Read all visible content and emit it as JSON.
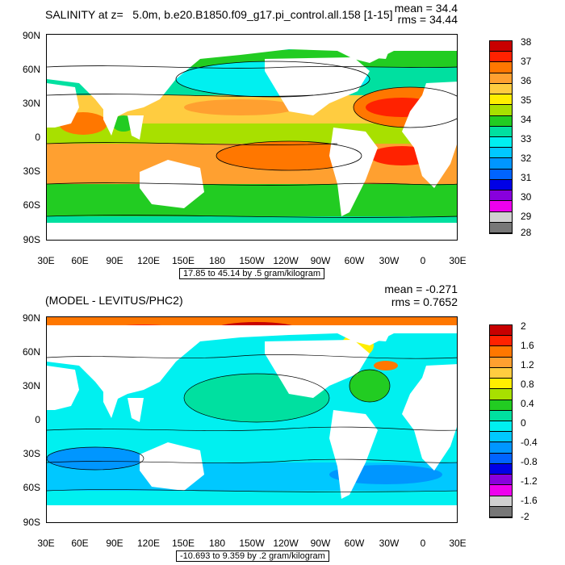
{
  "top": {
    "title": "SALINITY at z=   5.0m, b.e20.B1850.f09_g17.pi_control.all.158 [1-15]",
    "mean": "mean = 34.4",
    "rms": "rms = 34.44",
    "range_label": "17.85 to 45.14 by .5 gram/kilogram",
    "lat_labels": [
      "90N",
      "60N",
      "30N",
      "0",
      "30S",
      "60S",
      "90S"
    ],
    "lon_labels": [
      "30E",
      "60E",
      "90E",
      "120E",
      "150E",
      "180",
      "150W",
      "120W",
      "90W",
      "60W",
      "30W",
      "0",
      "30E"
    ],
    "colorbar_labels": [
      "38",
      "37",
      "36",
      "35",
      "34",
      "33",
      "32",
      "31",
      "30",
      "29",
      "28"
    ],
    "colorbar_colors": [
      "#c80000",
      "#ff2200",
      "#ff7700",
      "#ffa030",
      "#ffcc40",
      "#ffee00",
      "#a8e000",
      "#22cc22",
      "#00e0a0",
      "#00f0f0",
      "#00c8ff",
      "#0096ff",
      "#0064ff",
      "#0000e6",
      "#8800dd",
      "#ee00ee",
      "#d0d0d0",
      "#777777"
    ],
    "zones": [
      {
        "name": "arctic",
        "color": "#22cc22"
      },
      {
        "name": "north-pacific",
        "color": "#00e0a0"
      },
      {
        "name": "subtropical",
        "color": "#ffcc40"
      },
      {
        "name": "equatorial",
        "color": "#a8e000"
      },
      {
        "name": "south-subtropical",
        "color": "#ffa030"
      },
      {
        "name": "southern-ocean",
        "color": "#22cc22"
      },
      {
        "name": "atlantic-max",
        "color": "#ff2200"
      },
      {
        "name": "land",
        "color": "#ffffff"
      }
    ]
  },
  "bottom": {
    "title": "(MODEL - LEVITUS/PHC2)",
    "mean": "mean = -0.271",
    "rms": "rms = 0.7652",
    "range_label": "-10.693 to 9.359 by .2 gram/kilogram",
    "lat_labels": [
      "90N",
      "60N",
      "30N",
      "0",
      "30S",
      "60S",
      "90S"
    ],
    "lon_labels": [
      "30E",
      "60E",
      "90E",
      "120E",
      "150E",
      "180",
      "150W",
      "120W",
      "90W",
      "60W",
      "30W",
      "0",
      "30E"
    ],
    "colorbar_labels": [
      "2",
      "1.6",
      "1.2",
      "0.8",
      "0.4",
      "0",
      "-0.4",
      "-0.8",
      "-1.2",
      "-1.6",
      "-2"
    ],
    "colorbar_colors": [
      "#c80000",
      "#ff2200",
      "#ff7700",
      "#ffa030",
      "#ffcc40",
      "#ffee00",
      "#a8e000",
      "#22cc22",
      "#00e0a0",
      "#00f0f0",
      "#00c8ff",
      "#0096ff",
      "#0064ff",
      "#0000e6",
      "#8800dd",
      "#ee00ee",
      "#d0d0d0",
      "#777777"
    ],
    "zones": [
      {
        "name": "ocean-base",
        "color": "#00f0f0"
      },
      {
        "name": "arctic-high",
        "color": "#ff7700"
      },
      {
        "name": "southern-low",
        "color": "#00c8ff"
      },
      {
        "name": "atlantic-gulf",
        "color": "#22cc22"
      },
      {
        "name": "land",
        "color": "#ffffff"
      }
    ]
  }
}
